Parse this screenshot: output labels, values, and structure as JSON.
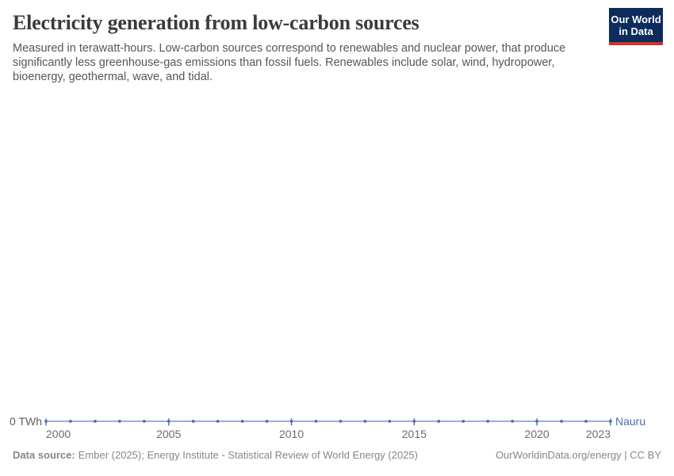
{
  "header": {
    "title": "Electricity generation from low-carbon sources",
    "subtitle_lines": [
      "Measured in terawatt-hours. Low-carbon sources correspond to renewables and nuclear power, that produce",
      "significantly less greenhouse-gas emissions than fossil fuels. Renewables include solar, wind, hydropower,",
      "bioenergy, geothermal, wave, and tidal."
    ],
    "logo": {
      "line1": "Our World",
      "line2": "in Data",
      "bg_color": "#0c2c5c",
      "stripe_color": "#d0342c"
    }
  },
  "chart_data": {
    "type": "line",
    "title": "Electricity generation from low-carbon sources",
    "xlabel": "",
    "ylabel": "",
    "unit": "TWh",
    "grid": false,
    "x": [
      2000,
      2001,
      2002,
      2003,
      2004,
      2005,
      2006,
      2007,
      2008,
      2009,
      2010,
      2011,
      2012,
      2013,
      2014,
      2015,
      2016,
      2017,
      2018,
      2019,
      2020,
      2021,
      2022,
      2023
    ],
    "series": [
      {
        "name": "Nauru",
        "values": [
          0,
          0,
          0,
          0,
          0,
          0,
          0,
          0,
          0,
          0,
          0,
          0,
          0,
          0,
          0,
          0,
          0,
          0,
          0,
          0,
          0,
          0,
          0,
          0
        ],
        "color": "#4f6eaa",
        "line_color": "#7b96c8"
      }
    ],
    "xlim": [
      2000,
      2023
    ],
    "ylim": [
      0,
      0
    ],
    "x_ticks": [
      2000,
      2005,
      2010,
      2015,
      2020,
      2023
    ],
    "y_ticks": [
      {
        "value": 0,
        "label": "0 TWh"
      }
    ],
    "entity_label": "Nauru",
    "legend_position": "right-of-line-end",
    "axis_text_color": "#6b6b6b",
    "y_label_color": "#5f5f5f"
  },
  "footer": {
    "source_label": "Data source:",
    "source_text": "Ember (2025); Energy Institute - Statistical Review of World Energy (2025)",
    "right_text": "OurWorldinData.org/energy | CC BY"
  }
}
